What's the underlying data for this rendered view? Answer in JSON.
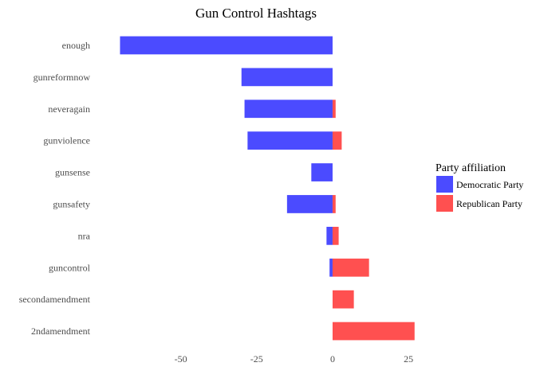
{
  "chart_data": {
    "type": "bar",
    "orientation": "horizontal",
    "stacked": "diverging",
    "title": "Gun Control Hashtags",
    "xlabel": "",
    "ylabel": "",
    "categories": [
      "enough",
      "gunreformnow",
      "neveragain",
      "gunviolence",
      "gunsense",
      "gunsafety",
      "nra",
      "guncontrol",
      "secondamendment",
      "2ndamendment"
    ],
    "series": [
      {
        "name": "Democratic Party",
        "color": "#4b4bff",
        "values": [
          -70,
          -30,
          -29,
          -28,
          -7,
          -15,
          -2,
          -1,
          0,
          0
        ]
      },
      {
        "name": "Republican Party",
        "color": "#ff5050",
        "values": [
          0,
          0,
          1,
          3,
          0,
          1,
          2,
          12,
          7,
          27
        ]
      }
    ],
    "xlim": [
      -78,
      31
    ],
    "xticks": [
      -50,
      -25,
      0,
      25
    ],
    "xtick_labels": [
      "-50",
      "-25",
      "0",
      "25"
    ],
    "grid": false,
    "legend": {
      "title": "Party affiliation",
      "placement": "right"
    }
  }
}
